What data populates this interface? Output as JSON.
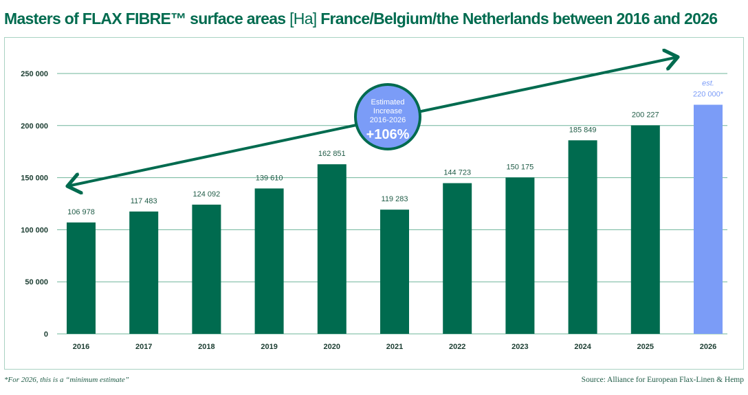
{
  "title": {
    "main": "Masters of FLAX FIBRE™ surface areas",
    "unit": "[Ha]",
    "rest": "France/Belgium/the Netherlands between 2016 and 2026"
  },
  "footnote": "*For 2026, this is a “minimum estimate”",
  "source": "Source: Alliance for European Flax-Linen & Hemp",
  "colors": {
    "bar": "#006b4f",
    "estimate": "#7b9cf7",
    "grid": "#6eb49a",
    "frame": "#a8d2c2",
    "text": "#1f5b46"
  },
  "callout": {
    "line1": "Estimated",
    "line2": "Increase",
    "line3": "2016-2026",
    "value": "+106%"
  },
  "chart_data": {
    "type": "bar",
    "title": "Masters of FLAX FIBRE™ surface areas [Ha] France/Belgium/the Netherlands between 2016 and 2026",
    "categories": [
      "2016",
      "2017",
      "2018",
      "2019",
      "2020",
      "2021",
      "2022",
      "2023",
      "2024",
      "2025",
      "2026"
    ],
    "values": [
      106978,
      117483,
      124092,
      139610,
      162851,
      119283,
      144723,
      150175,
      185849,
      200227,
      220000
    ],
    "value_labels": [
      "106 978",
      "117 483",
      "124 092",
      "139 610",
      "162 851",
      "119 283",
      "144 723",
      "150 175",
      "185 849",
      "200 227",
      "220 000*"
    ],
    "estimate_prefix": "est.",
    "estimate_index": 10,
    "yticks": [
      0,
      50000,
      100000,
      150000,
      200000,
      250000
    ],
    "ytick_labels": [
      "0",
      "50 000",
      "100 000",
      "150 000",
      "200 000",
      "250 000"
    ],
    "ylim": [
      0,
      250000
    ],
    "grid": true,
    "legend": "none",
    "annotation": "Estimated Increase 2016-2026 +106%"
  }
}
